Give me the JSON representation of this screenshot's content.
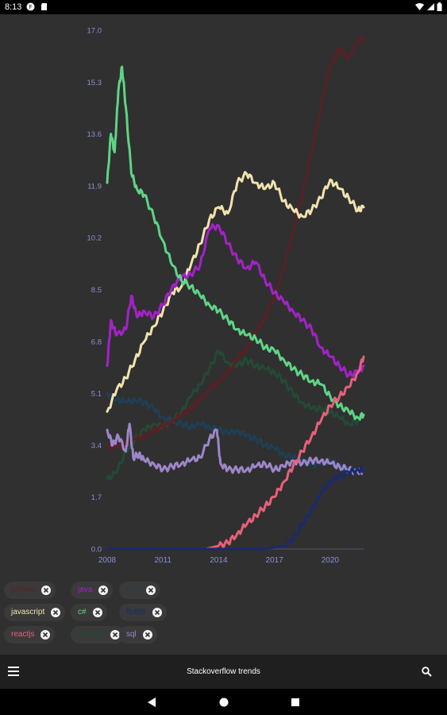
{
  "status_bar": {
    "time": "8:13"
  },
  "app_bar": {
    "title": "Stackoverflow trends",
    "menu_icon": "hamburger-icon",
    "search_icon": "search-icon"
  },
  "colors": {
    "background": "#303030",
    "axis_text": "#8d8fd6",
    "python": "#5a2025",
    "java": "#a322c9",
    "javascript": "#f1e3ae",
    "csharp": "#5ed486",
    "reactjs": "#e8607a",
    "flutter": "#1b2a6b",
    "sql": "#9d86c8",
    "cpp": "#1f3f55",
    "android": "#234a36"
  },
  "chips": [
    {
      "label": "python",
      "color": "#5a2025"
    },
    {
      "label": "java",
      "color": "#a322c9"
    },
    {
      "label": "c++",
      "color": "#1f3f55"
    },
    {
      "label": "javascript",
      "color": "#f1e3ae"
    },
    {
      "label": "c#",
      "color": "#5ed486"
    },
    {
      "label": "flutter",
      "color": "#1b2a6b"
    },
    {
      "label": "reactjs",
      "color": "#e8607a"
    },
    {
      "label": "android",
      "color": "#234a36"
    },
    {
      "label": "sql",
      "color": "#9d86c8"
    }
  ],
  "chart_data": {
    "type": "line",
    "xlim": [
      2008,
      2021.8
    ],
    "ylim": [
      0,
      17.0
    ],
    "x_ticks": [
      "2008",
      "2011",
      "2014",
      "2017",
      "2020"
    ],
    "x_tick_values": [
      2008,
      2011,
      2014,
      2017,
      2020
    ],
    "y_ticks": [
      "0.0",
      "1.7",
      "3.4",
      "5.1",
      "6.8",
      "8.5",
      "10.2",
      "11.9",
      "13.6",
      "15.3",
      "17.0"
    ],
    "y_tick_values": [
      0,
      1.7,
      3.4,
      5.1,
      6.8,
      8.5,
      10.2,
      11.9,
      13.6,
      15.3,
      17.0
    ],
    "series": [
      {
        "name": "android",
        "color": "#234a36",
        "x": [
          2008.0,
          2008.5,
          2009.0,
          2009.5,
          2010.0,
          2010.5,
          2011.0,
          2011.5,
          2012.0,
          2012.5,
          2013.0,
          2013.5,
          2014.0,
          2014.5,
          2015.0,
          2015.5,
          2016.0,
          2016.5,
          2017.0,
          2017.5,
          2018.0,
          2018.5,
          2019.0,
          2019.5,
          2020.0,
          2020.5,
          2021.0,
          2021.5
        ],
        "y": [
          2.3,
          2.5,
          3.2,
          3.6,
          3.9,
          4.1,
          4.0,
          4.2,
          4.5,
          5.0,
          5.4,
          5.9,
          6.5,
          6.1,
          6.0,
          6.2,
          6.0,
          5.9,
          5.8,
          5.5,
          5.1,
          4.8,
          4.6,
          4.6,
          4.5,
          4.3,
          4.1,
          4.2
        ]
      },
      {
        "name": "c++",
        "color": "#1f3f55",
        "x": [
          2008.0,
          2008.5,
          2009.0,
          2009.5,
          2010.0,
          2010.5,
          2011.0,
          2011.5,
          2012.0,
          2012.5,
          2013.0,
          2013.5,
          2014.0,
          2014.5,
          2015.0,
          2015.5,
          2016.0,
          2016.5,
          2017.0,
          2017.5,
          2018.0,
          2018.5,
          2019.0,
          2019.5,
          2020.0,
          2020.5,
          2021.0,
          2021.5
        ],
        "y": [
          5.1,
          4.9,
          4.8,
          4.9,
          4.8,
          4.6,
          4.3,
          4.2,
          4.1,
          4.0,
          4.1,
          4.0,
          3.9,
          3.8,
          3.9,
          3.7,
          3.6,
          3.4,
          3.3,
          3.1,
          3.0,
          2.9,
          2.8,
          2.8,
          2.9,
          2.7,
          2.6,
          2.6
        ]
      },
      {
        "name": "python",
        "color": "#5a2025",
        "x": [
          2008.0,
          2008.5,
          2009.0,
          2009.5,
          2010.0,
          2010.5,
          2011.0,
          2011.5,
          2012.0,
          2012.5,
          2013.0,
          2013.5,
          2014.0,
          2014.5,
          2015.0,
          2015.5,
          2016.0,
          2016.5,
          2017.0,
          2017.5,
          2018.0,
          2018.5,
          2019.0,
          2019.5,
          2020.0,
          2020.5,
          2021.0,
          2021.5,
          2021.8
        ],
        "y": [
          3.3,
          3.4,
          3.5,
          3.6,
          3.7,
          3.9,
          4.0,
          4.2,
          4.4,
          4.6,
          4.9,
          5.2,
          5.5,
          5.8,
          6.2,
          6.6,
          7.1,
          7.6,
          8.3,
          9.2,
          10.4,
          11.6,
          13.0,
          14.5,
          15.8,
          16.4,
          16.1,
          16.6,
          16.8
        ]
      },
      {
        "name": "javascript",
        "color": "#f1e3ae",
        "x": [
          2008.0,
          2008.5,
          2009.0,
          2009.5,
          2010.0,
          2010.5,
          2011.0,
          2011.5,
          2012.0,
          2012.5,
          2013.0,
          2013.5,
          2014.0,
          2014.5,
          2015.0,
          2015.5,
          2016.0,
          2016.5,
          2017.0,
          2017.5,
          2018.0,
          2018.5,
          2019.0,
          2019.5,
          2020.0,
          2020.5,
          2021.0,
          2021.5,
          2021.8
        ],
        "y": [
          4.5,
          5.2,
          5.6,
          6.2,
          6.8,
          7.3,
          7.8,
          8.4,
          8.6,
          9.3,
          10.0,
          10.8,
          11.2,
          11.0,
          12.0,
          12.3,
          12.0,
          11.8,
          12.0,
          11.4,
          11.1,
          10.9,
          11.1,
          11.5,
          12.1,
          11.8,
          11.5,
          11.1,
          11.2
        ]
      },
      {
        "name": "java",
        "color": "#a322c9",
        "x": [
          2008.0,
          2008.2,
          2008.5,
          2009.0,
          2009.3,
          2009.6,
          2010.0,
          2010.5,
          2011.0,
          2011.5,
          2012.0,
          2012.5,
          2013.0,
          2013.5,
          2014.0,
          2014.5,
          2015.0,
          2015.5,
          2016.0,
          2016.5,
          2017.0,
          2017.5,
          2018.0,
          2018.5,
          2019.0,
          2019.5,
          2020.0,
          2020.5,
          2021.0,
          2021.5,
          2021.8
        ],
        "y": [
          6.0,
          7.5,
          7.0,
          7.2,
          8.3,
          7.6,
          7.8,
          7.6,
          8.0,
          8.6,
          8.9,
          9.0,
          9.3,
          10.5,
          10.6,
          10.0,
          9.5,
          9.2,
          9.4,
          8.8,
          8.4,
          8.1,
          7.8,
          7.5,
          7.2,
          6.6,
          6.3,
          6.0,
          5.7,
          5.8,
          6.0
        ]
      },
      {
        "name": "c#",
        "color": "#5ed486",
        "x": [
          2008.0,
          2008.2,
          2008.4,
          2008.6,
          2008.8,
          2009.0,
          2009.3,
          2009.6,
          2010.0,
          2010.5,
          2011.0,
          2011.5,
          2012.0,
          2012.5,
          2013.0,
          2013.5,
          2014.0,
          2014.5,
          2015.0,
          2015.5,
          2016.0,
          2016.5,
          2017.0,
          2017.5,
          2018.0,
          2018.5,
          2019.0,
          2019.5,
          2020.0,
          2020.5,
          2021.0,
          2021.5,
          2021.8
        ],
        "y": [
          12.0,
          13.6,
          13.0,
          15.0,
          15.8,
          14.5,
          12.3,
          11.8,
          11.6,
          10.9,
          10.1,
          9.3,
          8.8,
          8.6,
          8.3,
          8.0,
          7.8,
          7.5,
          7.2,
          7.0,
          6.9,
          6.6,
          6.5,
          6.2,
          5.9,
          5.7,
          5.5,
          5.4,
          5.0,
          4.7,
          4.5,
          4.3,
          4.4
        ]
      },
      {
        "name": "sql",
        "color": "#9d86c8",
        "x": [
          2008.0,
          2008.3,
          2008.6,
          2009.0,
          2009.2,
          2009.4,
          2009.7,
          2010.0,
          2010.5,
          2011.0,
          2011.5,
          2012.0,
          2012.5,
          2013.0,
          2013.5,
          2013.9,
          2014.1,
          2014.5,
          2015.0,
          2015.5,
          2016.0,
          2016.5,
          2017.0,
          2017.5,
          2018.0,
          2018.5,
          2019.0,
          2019.5,
          2020.0,
          2020.5,
          2021.0,
          2021.5,
          2021.8
        ],
        "y": [
          3.9,
          3.4,
          3.7,
          3.2,
          4.1,
          3.0,
          3.1,
          2.9,
          2.8,
          2.6,
          2.7,
          2.8,
          2.9,
          3.0,
          3.6,
          3.9,
          2.8,
          2.6,
          2.6,
          2.6,
          2.7,
          2.8,
          2.6,
          2.7,
          2.9,
          2.8,
          2.9,
          2.9,
          2.8,
          2.7,
          2.6,
          2.5,
          2.6
        ]
      },
      {
        "name": "reactjs",
        "color": "#e8607a",
        "x": [
          2008.0,
          2013.3,
          2014.0,
          2014.5,
          2015.0,
          2015.5,
          2016.0,
          2016.5,
          2017.0,
          2017.5,
          2018.0,
          2018.5,
          2019.0,
          2019.5,
          2020.0,
          2020.5,
          2021.0,
          2021.5,
          2021.8
        ],
        "y": [
          0.0,
          0.0,
          0.1,
          0.2,
          0.5,
          0.8,
          1.1,
          1.4,
          1.7,
          2.2,
          2.7,
          3.2,
          3.7,
          4.2,
          4.7,
          5.0,
          5.3,
          5.8,
          6.3
        ]
      },
      {
        "name": "flutter",
        "color": "#1b2a6b",
        "x": [
          2008.0,
          2016.5,
          2017.5,
          2018.0,
          2018.5,
          2019.0,
          2019.5,
          2020.0,
          2020.5,
          2021.0,
          2021.5,
          2021.8
        ],
        "y": [
          0.0,
          0.0,
          0.1,
          0.3,
          0.8,
          1.3,
          1.8,
          2.2,
          2.4,
          2.5,
          2.6,
          2.6
        ]
      }
    ]
  }
}
